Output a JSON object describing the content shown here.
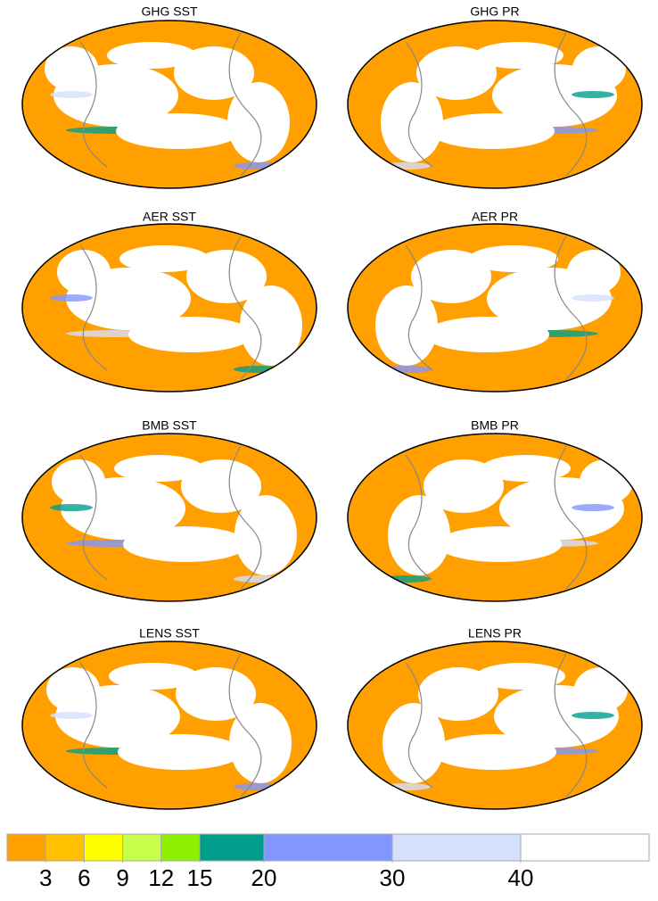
{
  "panels": [
    {
      "title": "GHG SST"
    },
    {
      "title": "GHG PR"
    },
    {
      "title": "AER SST"
    },
    {
      "title": "AER PR"
    },
    {
      "title": "BMB SST"
    },
    {
      "title": "BMB PR"
    },
    {
      "title": "LENS SST"
    },
    {
      "title": "LENS PR"
    }
  ],
  "colorbar": {
    "lim": [
      0,
      50
    ],
    "ticks": [
      3,
      6,
      9,
      12,
      15,
      20,
      30,
      40
    ],
    "colors": [
      "#ff9f00",
      "#ffc000",
      "#ffff00",
      "#c8ff4a",
      "#8cf000",
      "#009d8c",
      "#8196ff",
      "#d5e0ff",
      "#ffffff"
    ]
  }
}
